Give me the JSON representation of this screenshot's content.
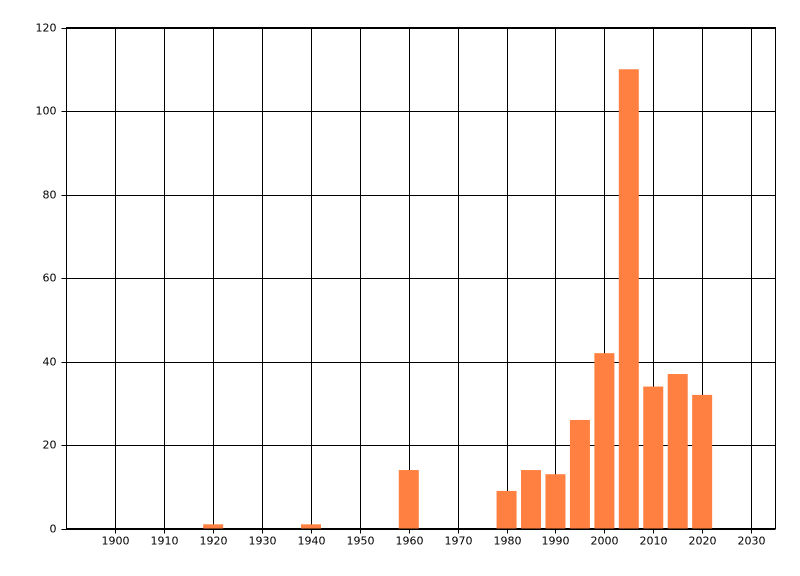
{
  "chart_data": {
    "type": "bar",
    "x": [
      1920,
      1940,
      1960,
      1980,
      1985,
      1990,
      1995,
      2000,
      2005,
      2010,
      2015,
      2020
    ],
    "values": [
      1,
      1,
      14,
      9,
      14,
      13,
      26,
      42,
      110,
      34,
      37,
      32
    ],
    "color": "#ff8040",
    "xlim": [
      1890,
      2035
    ],
    "xticks": [
      1900,
      1910,
      1920,
      1930,
      1940,
      1950,
      1960,
      1970,
      1980,
      1990,
      2000,
      2010,
      2020,
      2030
    ],
    "ylim": [
      0,
      120
    ],
    "yticks": [
      0,
      20,
      40,
      60,
      80,
      100,
      120
    ],
    "grid": true
  }
}
